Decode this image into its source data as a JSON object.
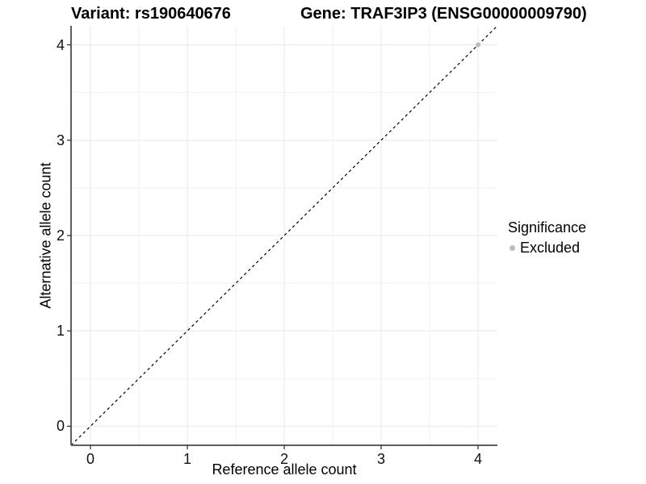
{
  "chart_data": {
    "type": "scatter",
    "title_left": "Variant: rs190640676",
    "title_right": "Gene: TRAF3IP3 (ENSG00000009790)",
    "xlabel": "Reference allele count",
    "ylabel": "Alternative allele count",
    "xlim": [
      -0.2,
      4.2
    ],
    "ylim": [
      -0.2,
      4.2
    ],
    "x_ticks": [
      0,
      1,
      2,
      3,
      4
    ],
    "y_ticks": [
      0,
      1,
      2,
      3,
      4
    ],
    "x_minor_ticks": [
      0.5,
      1.5,
      2.5,
      3.5
    ],
    "y_minor_ticks": [
      0.5,
      1.5,
      2.5,
      3.5
    ],
    "grid": true,
    "legend_title": "Significance",
    "legend_position": "right",
    "series": [
      {
        "name": "Excluded",
        "color": "#bdbdbd",
        "marker": "circle",
        "points": [
          {
            "x": 4,
            "y": 4
          }
        ]
      }
    ],
    "reference_line": {
      "kind": "identity",
      "slope": 1,
      "intercept": 0,
      "style": "dashed",
      "color": "#000000"
    }
  },
  "colors": {
    "background": "#ffffff",
    "grid_major": "#e8e8e8",
    "grid_minor": "#f2f2f2",
    "axis_line": "#5f5f5f",
    "tick_mark": "#2b2b2b",
    "tick_text": "#111111",
    "point": "#bdbdbd"
  }
}
